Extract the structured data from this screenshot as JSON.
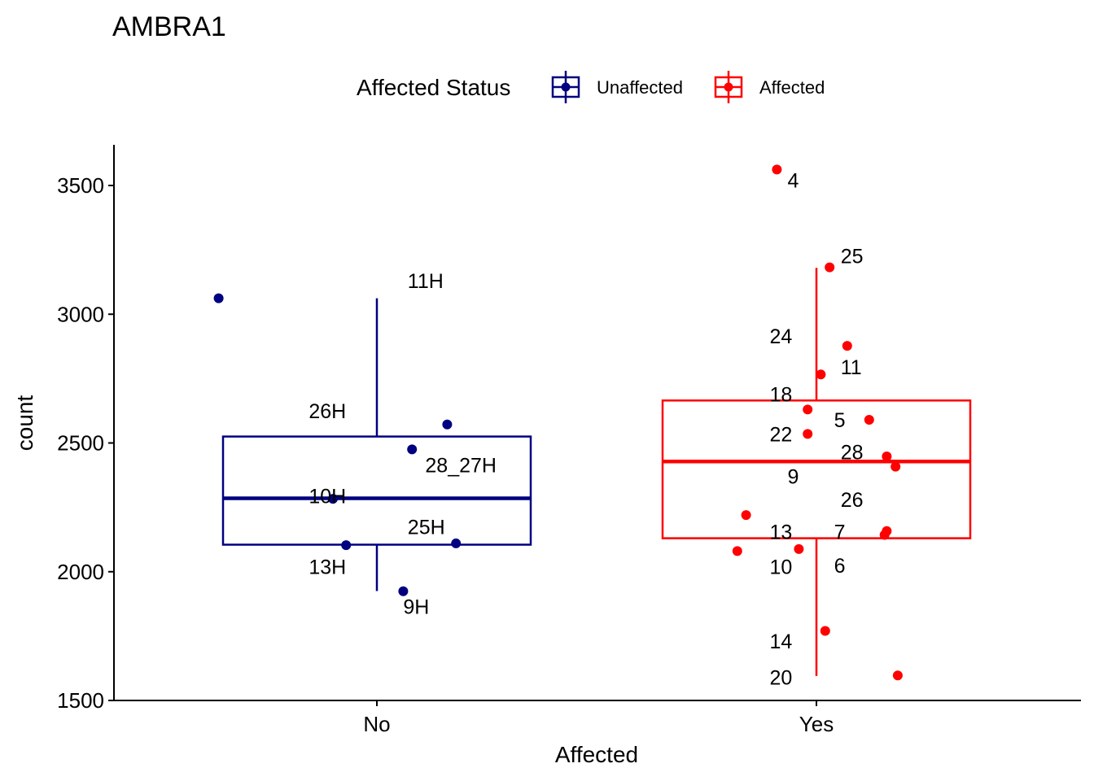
{
  "chart_data": {
    "type": "box",
    "title": "AMBRA1",
    "xlabel": "Affected",
    "ylabel": "count",
    "ylim": [
      1500,
      3650
    ],
    "yticks": [
      1500,
      2000,
      2500,
      3000,
      3500
    ],
    "categories": [
      "No",
      "Yes"
    ],
    "grid": false,
    "legend": {
      "title": "Affected Status",
      "position": "top",
      "entries": [
        {
          "label": "Unaffected",
          "color": "#000080"
        },
        {
          "label": "Affected",
          "color": "#ff0000"
        }
      ]
    },
    "boxes": [
      {
        "category": "No",
        "color": "#000080",
        "whisker_low": 1925,
        "q1": 2105,
        "median": 2285,
        "q3": 2525,
        "whisker_high": 3062
      },
      {
        "category": "Yes",
        "color": "#ff0000",
        "whisker_low": 1595,
        "q1": 2130,
        "median": 2428,
        "q3": 2665,
        "whisker_high": 3180
      }
    ],
    "series": [
      {
        "name": "Unaffected",
        "category": "No",
        "color": "#000080",
        "points": [
          {
            "jitter": -0.36,
            "y": 3062
          },
          {
            "jitter": 0.16,
            "y": 2572
          },
          {
            "jitter": 0.08,
            "y": 2475
          },
          {
            "jitter": -0.1,
            "y": 2283
          },
          {
            "jitter": -0.07,
            "y": 2103
          },
          {
            "jitter": 0.18,
            "y": 2110
          },
          {
            "jitter": 0.06,
            "y": 1924
          }
        ],
        "labels": [
          {
            "text": "11H",
            "y": 3130,
            "offset": 0.07
          },
          {
            "text": "26H",
            "y": 2625,
            "offset": -0.07
          },
          {
            "text": "28_27H",
            "y": 2415,
            "offset": 0.11
          },
          {
            "text": "10H",
            "y": 2295,
            "offset": -0.07
          },
          {
            "text": "25H",
            "y": 2175,
            "offset": 0.07
          },
          {
            "text": "13H",
            "y": 2020,
            "offset": -0.07
          },
          {
            "text": "9H",
            "y": 1865,
            "offset": 0.06
          }
        ]
      },
      {
        "name": "Affected",
        "category": "Yes",
        "color": "#ff0000",
        "points": [
          {
            "jitter": -0.09,
            "y": 3562
          },
          {
            "jitter": 0.03,
            "y": 3182
          },
          {
            "jitter": 0.07,
            "y": 2877
          },
          {
            "jitter": 0.01,
            "y": 2766
          },
          {
            "jitter": -0.02,
            "y": 2630
          },
          {
            "jitter": 0.12,
            "y": 2590
          },
          {
            "jitter": -0.02,
            "y": 2535
          },
          {
            "jitter": 0.16,
            "y": 2448
          },
          {
            "jitter": 0.18,
            "y": 2408
          },
          {
            "jitter": -0.16,
            "y": 2220
          },
          {
            "jitter": 0.16,
            "y": 2158
          },
          {
            "jitter": 0.155,
            "y": 2143
          },
          {
            "jitter": -0.18,
            "y": 2080
          },
          {
            "jitter": -0.04,
            "y": 2088
          },
          {
            "jitter": 0.02,
            "y": 1770
          },
          {
            "jitter": 0.185,
            "y": 1597
          }
        ],
        "labels": [
          {
            "text": "4",
            "y": 3520,
            "offset": -0.04
          },
          {
            "text": "25",
            "y": 3227,
            "offset": 0.055
          },
          {
            "text": "24",
            "y": 2915,
            "offset": -0.055
          },
          {
            "text": "11",
            "y": 2795,
            "offset": 0.055
          },
          {
            "text": "18",
            "y": 2690,
            "offset": -0.055
          },
          {
            "text": "5",
            "y": 2590,
            "offset": 0.04
          },
          {
            "text": "22",
            "y": 2535,
            "offset": -0.055
          },
          {
            "text": "28",
            "y": 2465,
            "offset": 0.055
          },
          {
            "text": "9",
            "y": 2370,
            "offset": -0.04
          },
          {
            "text": "26",
            "y": 2280,
            "offset": 0.055
          },
          {
            "text": "13",
            "y": 2155,
            "offset": -0.055
          },
          {
            "text": "7",
            "y": 2155,
            "offset": 0.04
          },
          {
            "text": "10",
            "y": 2020,
            "offset": -0.055
          },
          {
            "text": "6",
            "y": 2025,
            "offset": 0.04
          },
          {
            "text": "14",
            "y": 1730,
            "offset": -0.055
          },
          {
            "text": "20",
            "y": 1590,
            "offset": -0.055
          }
        ]
      }
    ]
  }
}
